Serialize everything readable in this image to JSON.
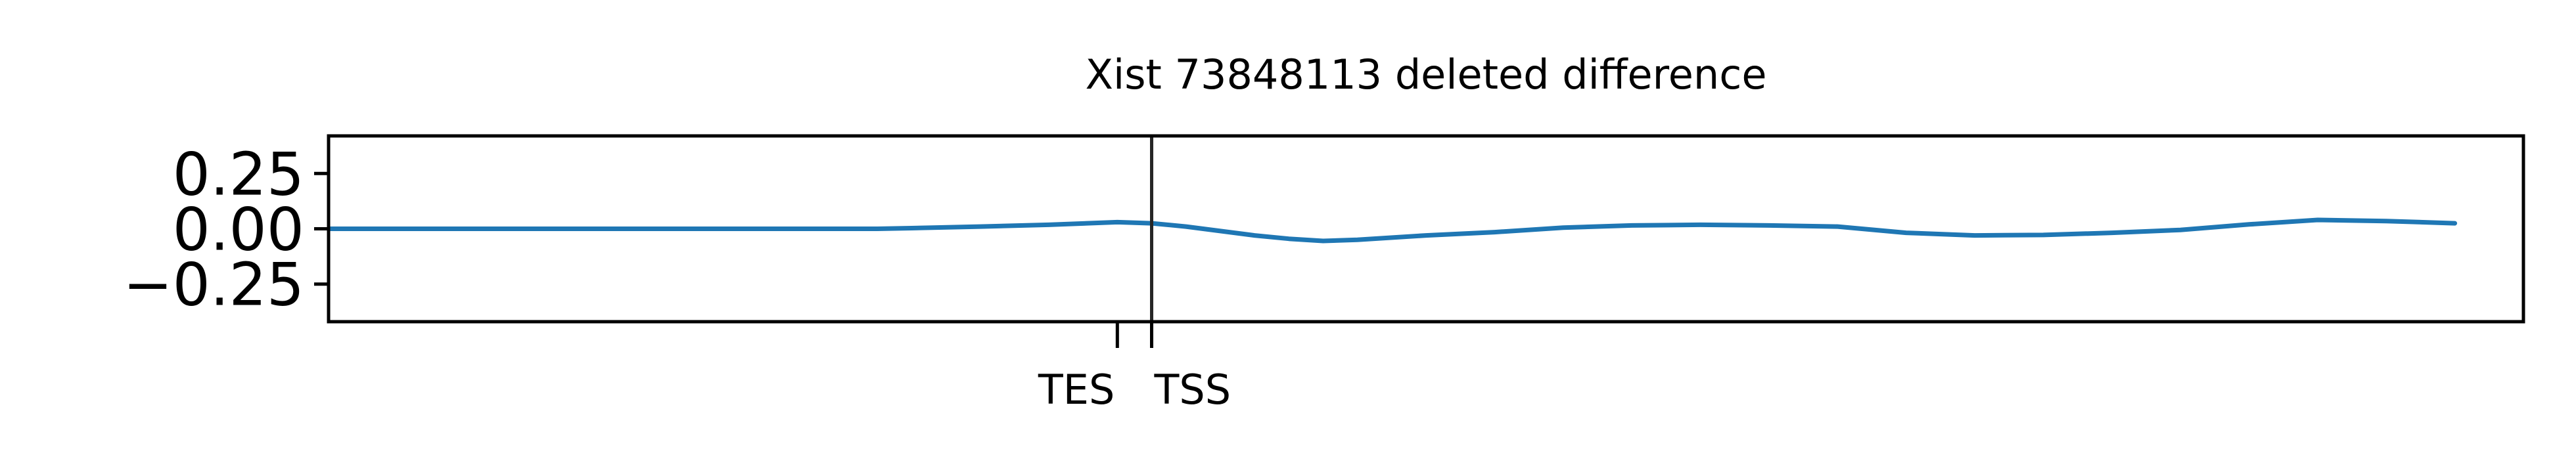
{
  "chart_data": {
    "type": "line",
    "title": "Xist 73848113 deleted difference",
    "xlabel": "",
    "ylabel": "",
    "ylim": [
      -0.42,
      0.42
    ],
    "yticks": [
      {
        "value": 0.25,
        "label": "0.25"
      },
      {
        "value": 0.0,
        "label": "0.00"
      },
      {
        "value": -0.25,
        "label": "−0.25"
      }
    ],
    "xlim": [
      -600,
      1000
    ],
    "xticks": [
      {
        "value": -25,
        "label": "TES"
      },
      {
        "value": 0,
        "label": "TSS"
      }
    ],
    "vline": 0,
    "grid": false,
    "line_color": "#1f77b4",
    "series": [
      {
        "x": [
          -600,
          -450,
          -300,
          -200,
          -175,
          -125,
          -75,
          -25,
          0,
          25,
          75,
          100,
          125,
          150,
          200,
          250,
          300,
          350,
          400,
          450,
          500,
          550,
          600,
          650,
          700,
          750,
          800,
          850,
          900,
          950
        ],
        "y": [
          0.0,
          0.0,
          0.0,
          0.0,
          0.003,
          0.01,
          0.018,
          0.03,
          0.025,
          0.01,
          -0.03,
          -0.045,
          -0.055,
          -0.05,
          -0.03,
          -0.015,
          0.005,
          0.015,
          0.018,
          0.015,
          0.01,
          -0.018,
          -0.03,
          -0.028,
          -0.018,
          -0.005,
          0.02,
          0.04,
          0.035,
          0.025
        ]
      }
    ]
  }
}
